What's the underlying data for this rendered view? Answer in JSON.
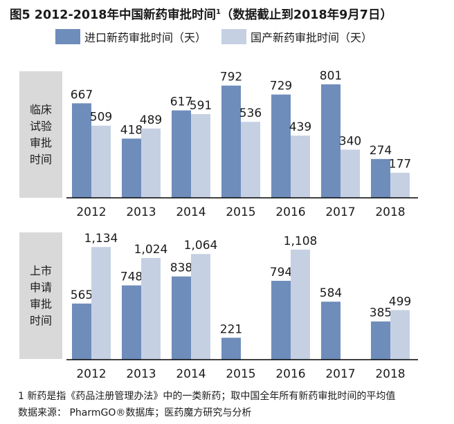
{
  "title": "图5 2012-2018年中国新药审批时间",
  "title_sup": "1",
  "title_note": "（数据截止到2018年9月7日）",
  "colors": {
    "imported": "#6f8dbb",
    "domestic": "#c5d0e3",
    "axis": "#000000",
    "side_bg": "#d9d9d9"
  },
  "legend": [
    {
      "label": "进口新药审批时间（天）",
      "color": "#6f8dbb"
    },
    {
      "label": "国产新药审批时间（天）",
      "color": "#c5d0e3"
    }
  ],
  "panels": [
    {
      "side_label": [
        "临床",
        "试验",
        "审批",
        "时间"
      ]
    },
    {
      "side_label": [
        "上市",
        "申请",
        "审批",
        "时间"
      ]
    }
  ],
  "chart_data": [
    {
      "type": "bar",
      "panel": "临床试验审批时间",
      "categories": [
        "2012",
        "2013",
        "2014",
        "2015",
        "2016",
        "2017",
        "2018"
      ],
      "series": [
        {
          "name": "进口新药审批时间（天）",
          "values": [
            667,
            418,
            617,
            792,
            729,
            801,
            274
          ]
        },
        {
          "name": "国产新药审批时间（天）",
          "values": [
            509,
            489,
            591,
            536,
            439,
            340,
            177
          ]
        }
      ],
      "data_labels": {
        "imported": [
          "667",
          "418",
          "617",
          "792",
          "729",
          "801",
          "274"
        ],
        "domestic": [
          "509",
          "489",
          "591",
          "536",
          "439",
          "340",
          "177"
        ]
      },
      "ylim": [
        0,
        820
      ]
    },
    {
      "type": "bar",
      "panel": "上市申请审批时间",
      "categories": [
        "2012",
        "2013",
        "2014",
        "2015",
        "2016",
        "2017",
        "2018"
      ],
      "series": [
        {
          "name": "进口新药审批时间（天）",
          "values": [
            565,
            748,
            838,
            221,
            794,
            584,
            385
          ]
        },
        {
          "name": "国产新药审批时间（天）",
          "values": [
            1134,
            1024,
            1064,
            null,
            1108,
            null,
            499
          ]
        }
      ],
      "data_labels": {
        "imported": [
          "565",
          "748",
          "838",
          "221",
          "794",
          "584",
          "385"
        ],
        "domestic": [
          "1,134",
          "1,024",
          "1,064",
          "",
          "1,108",
          "",
          "499"
        ]
      },
      "ylim": [
        0,
        1170
      ]
    }
  ],
  "footnote": "1 新药是指《药品注册管理办法》中的一类新药；取中国全年所有新药审批时间的平均值",
  "source": "数据来源： PharmGO®数据库；医药魔方研究与分析"
}
